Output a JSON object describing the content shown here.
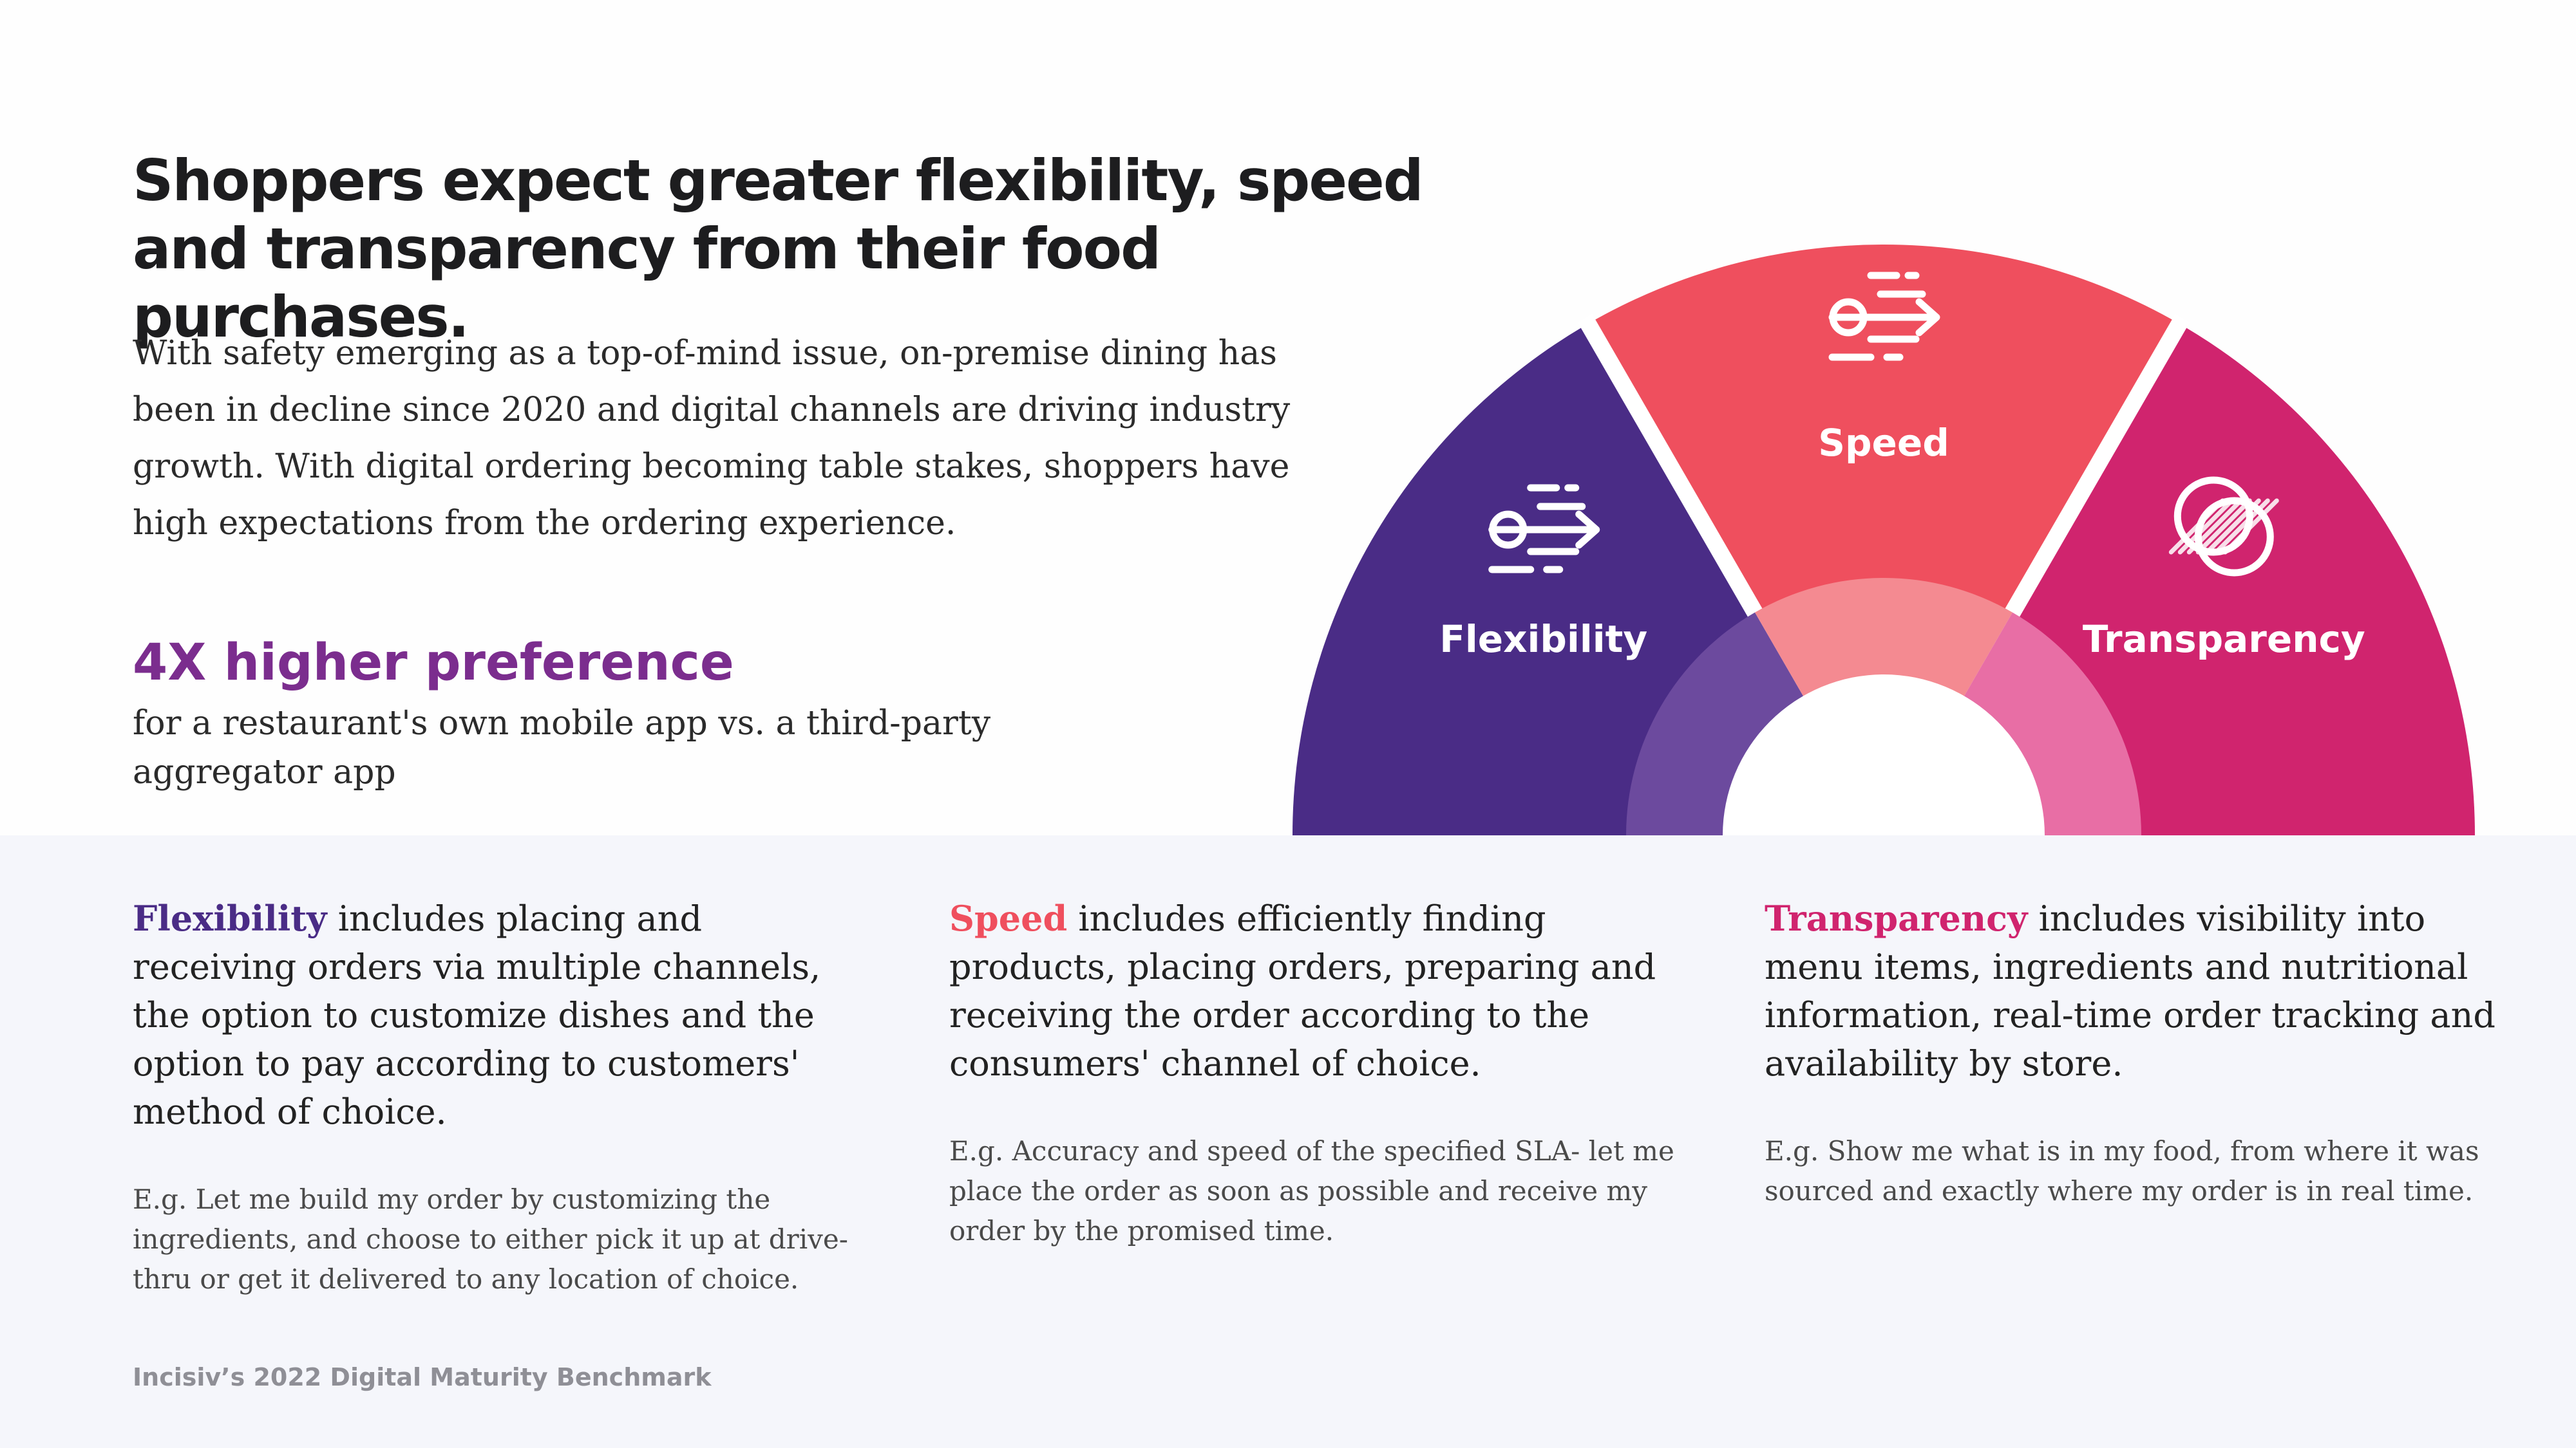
{
  "headline": "Shoppers expect greater flexibility, speed and transparency from their food purchases.",
  "intro": "With safety emerging as a top-of-mind issue, on-premise dining has been in decline since 2020 and digital channels are driving industry growth. With digital ordering becoming table stakes, shoppers have high expectations from the ordering experience.",
  "stat": {
    "value": "4X higher preference",
    "label": "for a restaurant's own mobile app vs. a third-party aggregator app"
  },
  "diagram": {
    "segments": [
      {
        "label": "Flexibility",
        "icon": "motion-arrow-icon",
        "color": "#4a2c86",
        "inner_color": "#6c4a9e"
      },
      {
        "label": "Speed",
        "icon": "motion-arrow-icon",
        "color": "#ef4f5e",
        "inner_color": "#f48a91"
      },
      {
        "label": "Transparency",
        "icon": "overlapping-circles-icon",
        "color": "#d0246e",
        "inner_color": "#e86ea5"
      }
    ]
  },
  "pillars": [
    {
      "term": "Flexibility",
      "color": "#4a2c86",
      "description": " includes placing and receiving orders via multiple channels, the option to customize dishes and the option to pay according to customers' method of choice.",
      "example": "E.g. Let me build my order by customizing the ingredients, and choose to either pick it up at drive-thru or get it delivered to any location of choice."
    },
    {
      "term": "Speed",
      "color": "#ef4f5e",
      "description": " includes efficiently finding products, placing orders, preparing and receiving the order according to the consumers' channel of choice.",
      "example": "E.g. Accuracy and speed of the specified SLA- let me place the order as soon as possible and receive my order by the promised time."
    },
    {
      "term": "Transparency",
      "color": "#d0246e",
      "description": " includes visibility into menu items, ingredients and nutritional information, real-time order tracking and availability by store.",
      "example": "E.g. Show me what is in my food, from where it was sourced and exactly where my order is in real time."
    }
  ],
  "source": "Incisiv’s 2022 Digital Maturity Benchmark"
}
